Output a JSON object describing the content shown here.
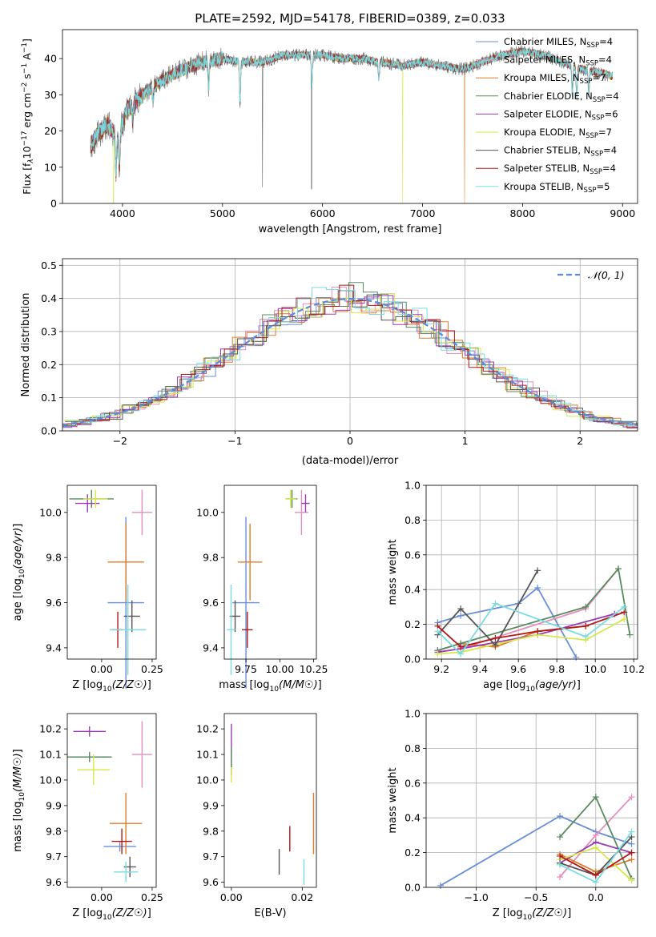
{
  "figure_title": "PLATE=2592, MJD=54178, FIBERID=0389, z=0.033",
  "colors": [
    "#6b8fd6",
    "#e58fbc",
    "#e07b2a",
    "#5a8a60",
    "#9a3bb3",
    "#d6e84a",
    "#555555",
    "#b01818",
    "#7adbe0"
  ],
  "chart_data": [
    {
      "id": "spectrum",
      "type": "line",
      "title": "PLATE=2592, MJD=54178, FIBERID=0389, z=0.033",
      "xlabel": "wavelength [Angstrom, rest frame]",
      "ylabel_parts": [
        "Flux [f",
        "λ",
        "10",
        "−17",
        " erg cm",
        "−2",
        " s",
        "−1",
        " A",
        "−1",
        "]"
      ],
      "xlim": [
        3400,
        9150
      ],
      "ylim": [
        0,
        48
      ],
      "xticks": [
        "4000",
        "5000",
        "6000",
        "7000",
        "8000",
        "9000"
      ],
      "yticks": [
        "0",
        "10",
        "20",
        "30",
        "40"
      ],
      "legend_position": "top-right",
      "series": [
        {
          "label": [
            "Chabrier MILES, N",
            "SSP",
            "=4"
          ]
        },
        {
          "label": [
            "Salpeter MILES, N",
            "SSP",
            "=4"
          ]
        },
        {
          "label": [
            "Kroupa MILES, N",
            "SSP",
            "=7"
          ]
        },
        {
          "label": [
            "Chabrier ELODIE, N",
            "SSP",
            "=4"
          ]
        },
        {
          "label": [
            "Salpeter ELODIE, N",
            "SSP",
            "=6"
          ]
        },
        {
          "label": [
            "Kroupa ELODIE, N",
            "SSP",
            "=7"
          ]
        },
        {
          "label": [
            "Chabrier STELIB, N",
            "SSP",
            "=4"
          ]
        },
        {
          "label": [
            "Salpeter STELIB, N",
            "SSP",
            "=4"
          ]
        },
        {
          "label": [
            "Kroupa STELIB, N",
            "SSP",
            "=5"
          ]
        }
      ],
      "continuum": {
        "x": [
          3680,
          3750,
          3850,
          3950,
          4050,
          4200,
          4400,
          4600,
          4800,
          5000,
          5200,
          5400,
          5600,
          5800,
          6000,
          6200,
          6400,
          6600,
          6800,
          7000,
          7200,
          7400,
          7600,
          7800,
          8000,
          8200,
          8400,
          8600,
          8800,
          8900
        ],
        "y": [
          16,
          19,
          22,
          18,
          26,
          30,
          34,
          37,
          39,
          40,
          39,
          39,
          41,
          41,
          41,
          40,
          40,
          39,
          38,
          39,
          38,
          37,
          39,
          41,
          42,
          41,
          39,
          37,
          36,
          35
        ]
      },
      "features": [
        {
          "x": 3934,
          "y": 8
        },
        {
          "x": 3969,
          "y": 10
        },
        {
          "x": 4102,
          "y": 23
        },
        {
          "x": 4305,
          "y": 28
        },
        {
          "x": 4861,
          "y": 32
        },
        {
          "x": 5175,
          "y": 28
        },
        {
          "x": 5893,
          "y": 33
        },
        {
          "x": 6563,
          "y": 34
        },
        {
          "x": 8498,
          "y": 30
        },
        {
          "x": 8542,
          "y": 29
        },
        {
          "x": 8662,
          "y": 30
        }
      ],
      "spikes": [
        {
          "x": 5400,
          "y": 4.5,
          "series": 6
        },
        {
          "x": 5890,
          "y": 4.0,
          "series": 6
        },
        {
          "x": 6800,
          "y": 0,
          "series": 5
        },
        {
          "x": 3910,
          "y": 0,
          "series": 5
        },
        {
          "x": 7420,
          "y": 0,
          "series": 2
        }
      ]
    },
    {
      "id": "residual-histogram",
      "type": "histogram",
      "xlabel": "(data-model)/error",
      "ylabel": "Normed distribution",
      "xlim": [
        -2.5,
        2.5
      ],
      "ylim": [
        0,
        0.52
      ],
      "xticks": [
        -2,
        -1,
        0,
        1,
        2
      ],
      "xtick_labels": [
        "−2",
        "−1",
        "0",
        "1",
        "2"
      ],
      "yticks": [
        "0.0",
        "0.1",
        "0.2",
        "0.3",
        "0.4",
        "0.5"
      ],
      "grid": true,
      "bin_width": 0.125,
      "reference_label": "𝒩(0, 1)",
      "reference_color": "#5b8ad8",
      "legend_position": "top-right"
    },
    {
      "id": "age-vs-Z",
      "type": "scatter-errorbar",
      "xlabel": "Z [log10(Z/Z☉)]",
      "ylabel": "age  [log10(age/yr)]",
      "xlim": [
        -0.17,
        0.27
      ],
      "ylim": [
        9.35,
        10.12
      ],
      "xticks": [
        "0.00",
        "0.25"
      ],
      "yticks": [
        "9.4",
        "9.6",
        "9.8",
        "10.0"
      ],
      "points": [
        {
          "x": 0.12,
          "y": 9.6,
          "xerr": 0.09,
          "yerr": 0.38,
          "series": 0
        },
        {
          "x": 0.2,
          "y": 10.0,
          "xerr": 0.05,
          "yerr": 0.1,
          "series": 1
        },
        {
          "x": 0.12,
          "y": 9.78,
          "xerr": 0.09,
          "yerr": 0.17,
          "series": 2
        },
        {
          "x": -0.05,
          "y": 10.06,
          "xerr": 0.11,
          "yerr": 0.04,
          "series": 3
        },
        {
          "x": -0.07,
          "y": 10.04,
          "xerr": 0.06,
          "yerr": 0.04,
          "series": 4
        },
        {
          "x": -0.03,
          "y": 10.06,
          "xerr": 0.06,
          "yerr": 0.04,
          "series": 5
        },
        {
          "x": 0.15,
          "y": 9.54,
          "xerr": 0.04,
          "yerr": 0.07,
          "series": 6
        },
        {
          "x": 0.08,
          "y": 9.48,
          "xerr": 0.03,
          "yerr": 0.08,
          "series": 7
        },
        {
          "x": 0.13,
          "y": 9.48,
          "xerr": 0.09,
          "yerr": 0.2,
          "series": 8
        }
      ]
    },
    {
      "id": "age-vs-mass",
      "type": "scatter-errorbar",
      "xlabel": "mass [log10(M/M☉)]",
      "ylabel": "",
      "xlim": [
        9.59,
        10.27
      ],
      "ylim": [
        9.35,
        10.12
      ],
      "xticks": [
        "9.75",
        "10.00",
        "10.25"
      ],
      "yticks": [
        "9.4",
        "9.6",
        "9.8",
        "10.0"
      ],
      "points": [
        {
          "x": 9.75,
          "y": 9.6,
          "xerr": 0.1,
          "yerr": 0.38,
          "series": 0
        },
        {
          "x": 10.16,
          "y": 10.0,
          "xerr": 0.05,
          "yerr": 0.1,
          "series": 1
        },
        {
          "x": 9.78,
          "y": 9.78,
          "xerr": 0.09,
          "yerr": 0.17,
          "series": 2
        },
        {
          "x": 10.09,
          "y": 10.06,
          "xerr": 0.04,
          "yerr": 0.04,
          "series": 3
        },
        {
          "x": 10.19,
          "y": 10.04,
          "xerr": 0.03,
          "yerr": 0.04,
          "series": 4
        },
        {
          "x": 10.08,
          "y": 10.06,
          "xerr": 0.04,
          "yerr": 0.04,
          "series": 5
        },
        {
          "x": 9.67,
          "y": 9.54,
          "xerr": 0.04,
          "yerr": 0.07,
          "series": 6
        },
        {
          "x": 9.76,
          "y": 9.48,
          "xerr": 0.04,
          "yerr": 0.08,
          "series": 7
        },
        {
          "x": 9.64,
          "y": 9.48,
          "xerr": 0.03,
          "yerr": 0.2,
          "series": 8
        }
      ]
    },
    {
      "id": "weight-vs-age",
      "type": "line",
      "xlabel": "age  [log10(age/yr)]",
      "ylabel": "mass weight",
      "xlim": [
        9.12,
        10.22
      ],
      "ylim": [
        0,
        1
      ],
      "xticks": [
        "9.2",
        "9.4",
        "9.6",
        "9.8",
        "10.0",
        "10.2"
      ],
      "yticks": [
        "0.0",
        "0.2",
        "0.4",
        "0.6",
        "0.8",
        "1.0"
      ],
      "grid": true,
      "series": [
        {
          "x": [
            9.18,
            9.3,
            9.6,
            9.7,
            9.9
          ],
          "y": [
            0.21,
            0.25,
            0.32,
            0.41,
            0.01
          ]
        },
        {
          "x": [
            9.3,
            9.95,
            10.12
          ],
          "y": [
            0.06,
            0.29,
            0.52
          ]
        },
        {
          "x": [
            9.18,
            9.3,
            9.48,
            9.7,
            9.95
          ],
          "y": [
            0.05,
            0.09,
            0.07,
            0.16,
            0.19
          ]
        },
        {
          "x": [
            9.18,
            9.3,
            9.95,
            10.12,
            10.18
          ],
          "y": [
            0.05,
            0.09,
            0.3,
            0.52,
            0.14
          ]
        },
        {
          "x": [
            9.18,
            9.3,
            9.7,
            10.1
          ],
          "y": [
            0.04,
            0.06,
            0.14,
            0.26
          ]
        },
        {
          "x": [
            9.18,
            9.3,
            9.7,
            9.95,
            10.15
          ],
          "y": [
            0.03,
            0.04,
            0.14,
            0.11,
            0.23
          ]
        },
        {
          "x": [
            9.18,
            9.3,
            9.48,
            9.7
          ],
          "y": [
            0.14,
            0.29,
            0.08,
            0.51
          ]
        },
        {
          "x": [
            9.18,
            9.3,
            9.48,
            9.7,
            9.95,
            10.15
          ],
          "y": [
            0.19,
            0.07,
            0.12,
            0.16,
            0.19,
            0.27
          ]
        },
        {
          "x": [
            9.18,
            9.3,
            9.48,
            9.95,
            10.15
          ],
          "y": [
            0.16,
            0.03,
            0.32,
            0.13,
            0.3
          ]
        }
      ]
    },
    {
      "id": "mass-vs-Z",
      "type": "scatter-errorbar",
      "xlabel": "Z [log10(Z/Z☉)]",
      "ylabel": "mass [log10(M/M☉)]",
      "xlim": [
        -0.17,
        0.27
      ],
      "ylim": [
        9.58,
        10.26
      ],
      "xticks": [
        "0.00",
        "0.25"
      ],
      "yticks": [
        "9.6",
        "9.7",
        "9.8",
        "9.9",
        "10.0",
        "10.1",
        "10.2"
      ],
      "points": [
        {
          "x": 0.09,
          "y": 9.74,
          "xerr": 0.08,
          "yerr": 0.02,
          "series": 0
        },
        {
          "x": 0.2,
          "y": 10.1,
          "xerr": 0.05,
          "yerr": 0.13,
          "series": 1
        },
        {
          "x": 0.12,
          "y": 9.83,
          "xerr": 0.08,
          "yerr": 0.12,
          "series": 2
        },
        {
          "x": -0.06,
          "y": 10.09,
          "xerr": 0.11,
          "yerr": 0.02,
          "series": 3
        },
        {
          "x": -0.06,
          "y": 10.19,
          "xerr": 0.08,
          "yerr": 0.02,
          "series": 4
        },
        {
          "x": -0.04,
          "y": 10.04,
          "xerr": 0.08,
          "yerr": 0.06,
          "series": 5
        },
        {
          "x": 0.14,
          "y": 9.66,
          "xerr": 0.03,
          "yerr": 0.04,
          "series": 6
        },
        {
          "x": 0.1,
          "y": 9.76,
          "xerr": 0.05,
          "yerr": 0.05,
          "series": 7
        },
        {
          "x": 0.12,
          "y": 9.64,
          "xerr": 0.06,
          "yerr": 0.04,
          "series": 8
        }
      ]
    },
    {
      "id": "mass-vs-EBV",
      "type": "scatter-errorbar",
      "xlabel": "E(B-V)",
      "ylabel": "",
      "xlim": [
        -0.002,
        0.024
      ],
      "ylim": [
        9.58,
        10.26
      ],
      "xticks": [
        "0.00",
        "0.02"
      ],
      "yticks": [
        "9.6",
        "9.7",
        "9.8",
        "9.9",
        "10.0",
        "10.1",
        "10.2"
      ],
      "points": [
        {
          "x": 0.0,
          "y": 10.12,
          "xerr": 0,
          "yerr": 0.1,
          "series": 4
        },
        {
          "x": 0.0,
          "y": 10.04,
          "xerr": 0,
          "yerr": 0.05,
          "series": 5
        },
        {
          "x": 0.0,
          "y": 10.09,
          "xerr": 0,
          "yerr": 0.04,
          "series": 3
        },
        {
          "x": 0.0135,
          "y": 9.68,
          "xerr": 0,
          "yerr": 0.05,
          "series": 6
        },
        {
          "x": 0.0165,
          "y": 9.77,
          "xerr": 0,
          "yerr": 0.05,
          "series": 7
        },
        {
          "x": 0.0205,
          "y": 9.64,
          "xerr": 0,
          "yerr": 0.05,
          "series": 8
        },
        {
          "x": 0.0232,
          "y": 9.83,
          "xerr": 0,
          "yerr": 0.12,
          "series": 2
        }
      ]
    },
    {
      "id": "weight-vs-Z",
      "type": "line",
      "xlabel": "Z [log10(Z/Z☉)]",
      "ylabel": "mass weight",
      "xlim": [
        -1.42,
        0.35
      ],
      "ylim": [
        0,
        1
      ],
      "xticks": [
        -1.0,
        -0.5,
        0.0
      ],
      "xtick_labels": [
        "−1.0",
        "−0.5",
        "0.0"
      ],
      "yticks": [
        "0.0",
        "0.2",
        "0.4",
        "0.6",
        "0.8",
        "1.0"
      ],
      "grid": true,
      "series": [
        {
          "x": [
            -1.3,
            -0.3,
            0.0,
            0.3
          ],
          "y": [
            0.01,
            0.41,
            0.32,
            0.25
          ]
        },
        {
          "x": [
            -0.3,
            0.0,
            0.3
          ],
          "y": [
            0.06,
            0.3,
            0.52
          ]
        },
        {
          "x": [
            -0.3,
            0.0,
            0.3
          ],
          "y": [
            0.19,
            0.09,
            0.16
          ]
        },
        {
          "x": [
            -0.3,
            0.0,
            0.3
          ],
          "y": [
            0.29,
            0.52,
            0.05
          ]
        },
        {
          "x": [
            -0.3,
            0.0,
            0.3
          ],
          "y": [
            0.14,
            0.26,
            0.2
          ]
        },
        {
          "x": [
            -0.3,
            0.0,
            0.3
          ],
          "y": [
            0.16,
            0.23,
            0.04
          ]
        },
        {
          "x": [
            -0.3,
            0.0,
            0.3
          ],
          "y": [
            0.14,
            0.07,
            0.29
          ]
        },
        {
          "x": [
            -0.3,
            0.0,
            0.3
          ],
          "y": [
            0.18,
            0.07,
            0.2
          ]
        },
        {
          "x": [
            -0.3,
            0.0,
            0.3
          ],
          "y": [
            0.13,
            0.03,
            0.32
          ]
        }
      ]
    }
  ]
}
